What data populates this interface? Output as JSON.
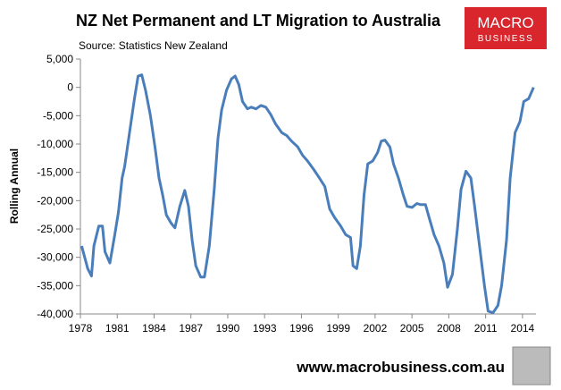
{
  "chart_data": {
    "type": "line",
    "title": "NZ Net Permanent and LT Migration to Australia",
    "subtitle": "Source: Statistics New Zealand",
    "y_label": "Rolling Annual",
    "logo": [
      "MACRO",
      "BUSINESS"
    ],
    "footer": "www.macrobusiness.com.au",
    "xlim": [
      1978,
      2015.1
    ],
    "xticks": [
      1978,
      1981,
      1984,
      1987,
      1990,
      1993,
      1996,
      1999,
      2002,
      2005,
      2008,
      2011,
      2014
    ],
    "ylim": [
      -40000,
      5000
    ],
    "yticks": [
      {
        "value": 5000,
        "label": "5,000"
      },
      0,
      {
        "value": -5000,
        "label": "-5,000"
      },
      {
        "value": -10000,
        "label": "-10,000"
      },
      {
        "value": -15000,
        "label": "-15,000"
      },
      {
        "value": -20000,
        "label": "-20,000"
      },
      {
        "value": -25000,
        "label": "-25,000"
      },
      {
        "value": -30000,
        "label": "-30,000"
      },
      {
        "value": -35000,
        "label": "-35,000"
      },
      {
        "value": -40000,
        "label": "-40,000"
      }
    ],
    "grid": false,
    "x": [
      1978.1,
      1978.6,
      1978.9,
      1979.1,
      1979.5,
      1979.8,
      1980.0,
      1980.4,
      1980.8,
      1981.1,
      1981.4,
      1981.6,
      1982.0,
      1982.4,
      1982.7,
      1983.0,
      1983.3,
      1983.7,
      1984.1,
      1984.4,
      1984.7,
      1985.0,
      1985.4,
      1985.7,
      1986.1,
      1986.5,
      1986.8,
      1987.1,
      1987.4,
      1987.8,
      1988.1,
      1988.5,
      1988.9,
      1989.2,
      1989.5,
      1989.9,
      1990.3,
      1990.6,
      1990.9,
      1991.2,
      1991.6,
      1991.9,
      1992.3,
      1992.7,
      1993.1,
      1993.5,
      1993.9,
      1994.4,
      1994.8,
      1995.2,
      1995.7,
      1996.1,
      1996.5,
      1997.0,
      1997.4,
      1997.9,
      1998.3,
      1998.7,
      1999.2,
      1999.6,
      2000.0,
      2000.2,
      2000.5,
      2000.8,
      2001.1,
      2001.4,
      2001.8,
      2002.2,
      2002.5,
      2002.8,
      2003.2,
      2003.5,
      2003.9,
      2004.3,
      2004.6,
      2005.0,
      2005.4,
      2005.7,
      2006.1,
      2006.4,
      2006.8,
      2007.2,
      2007.6,
      2007.9,
      2008.3,
      2008.7,
      2009.0,
      2009.4,
      2009.8,
      2010.1,
      2010.5,
      2010.9,
      2011.2,
      2011.6,
      2012.0,
      2012.3,
      2012.7,
      2013.0,
      2013.4,
      2013.8,
      2014.1,
      2014.5,
      2014.9
    ],
    "series": [
      {
        "name": "Rolling Annual",
        "color": "#4a7ebb",
        "values": [
          -28000,
          -32000,
          -33300,
          -28000,
          -24500,
          -24500,
          -29000,
          -31000,
          -26000,
          -22000,
          -16000,
          -14000,
          -8000,
          -2000,
          2000,
          2200,
          -500,
          -5000,
          -11000,
          -16000,
          -19000,
          -22500,
          -24000,
          -24800,
          -21000,
          -18200,
          -21000,
          -27000,
          -31500,
          -33500,
          -33500,
          -28000,
          -18000,
          -9000,
          -4000,
          -500,
          1500,
          2000,
          500,
          -2500,
          -3800,
          -3500,
          -3800,
          -3200,
          -3500,
          -4800,
          -6500,
          -8000,
          -8500,
          -9500,
          -10500,
          -12000,
          -13000,
          -14500,
          -15800,
          -17500,
          -21500,
          -23000,
          -24500,
          -26000,
          -26500,
          -31500,
          -32000,
          -28000,
          -19000,
          -13500,
          -13000,
          -11500,
          -9500,
          -9300,
          -10500,
          -13500,
          -16000,
          -19000,
          -21000,
          -21200,
          -20500,
          -20700,
          -20700,
          -23000,
          -26000,
          -28000,
          -31000,
          -35300,
          -33000,
          -25000,
          -18000,
          -14800,
          -16000,
          -21000,
          -28000,
          -35000,
          -39500,
          -39800,
          -38500,
          -35000,
          -27000,
          -16000,
          -8000,
          -6000,
          -2500,
          -2000,
          0
        ]
      }
    ]
  }
}
